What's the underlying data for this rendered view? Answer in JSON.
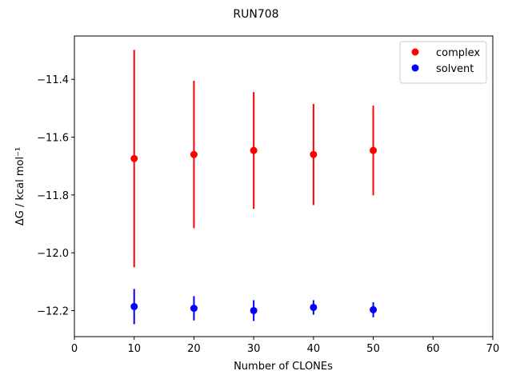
{
  "chart_data": {
    "type": "scatter",
    "title": "RUN708",
    "xlabel": "Number of CLONEs",
    "ylabel": "ΔG / kcal mol⁻¹",
    "x": [
      10,
      20,
      30,
      40,
      50
    ],
    "series": [
      {
        "name": "complex",
        "color": "#ff0000",
        "values": [
          -11.674,
          -11.66,
          -11.646,
          -11.66,
          -11.646
        ],
        "errors": [
          0.376,
          0.255,
          0.202,
          0.175,
          0.155
        ]
      },
      {
        "name": "solvent",
        "color": "#0000ff",
        "values": [
          -12.186,
          -12.192,
          -12.2,
          -12.189,
          -12.197
        ],
        "errors": [
          0.061,
          0.042,
          0.036,
          0.025,
          0.026
        ]
      }
    ],
    "xlim": [
      0,
      70
    ],
    "xticks": [
      0,
      10,
      20,
      30,
      40,
      50,
      60,
      70
    ],
    "ylim": [
      -12.29,
      -11.25
    ],
    "yticks": [
      {
        "value": -12.2,
        "label": "−12.2"
      },
      {
        "value": -12.0,
        "label": "−12.0"
      },
      {
        "value": -11.8,
        "label": "−11.8"
      },
      {
        "value": -11.6,
        "label": "−11.6"
      },
      {
        "value": -11.4,
        "label": "−11.4"
      }
    ],
    "legend": "upper right"
  }
}
